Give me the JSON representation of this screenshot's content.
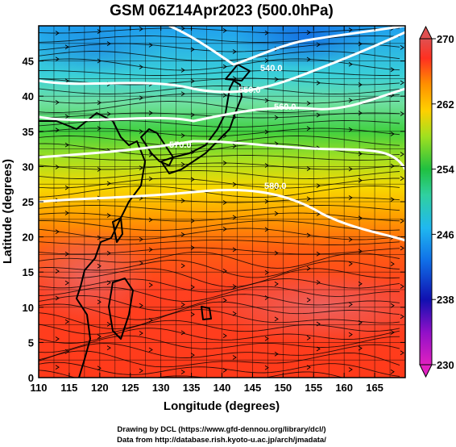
{
  "title": "GSM 06Z14Apr2023 (500.0hPa)",
  "xaxis": {
    "label": "Longitude (degrees)",
    "range": [
      110,
      170
    ],
    "ticks": [
      "110",
      "115",
      "120",
      "125",
      "130",
      "135",
      "140",
      "145",
      "150",
      "155",
      "160",
      "165"
    ]
  },
  "yaxis": {
    "label": "Latitude (degrees)",
    "range": [
      0,
      50
    ],
    "ticks": [
      "0",
      "5",
      "10",
      "15",
      "20",
      "25",
      "30",
      "35",
      "40",
      "45"
    ]
  },
  "colorbar": {
    "range": [
      230,
      270
    ],
    "ticks": [
      "230",
      "238",
      "246",
      "254",
      "262",
      "270"
    ],
    "colors": [
      "#e020c0",
      "#1010b0",
      "#1f8ff0",
      "#2fd0d0",
      "#20c040",
      "#a0e020",
      "#ffd000",
      "#ff8000",
      "#ff3020",
      "#e05050"
    ]
  },
  "contours": {
    "color": "#ffffff",
    "labels": [
      "540.0",
      "550.0",
      "560.0",
      "570.0",
      "580.0"
    ]
  },
  "credits": {
    "line1": "Drawing by DCL (https://www.gfd-dennou.org/library/dcl/)",
    "line2": "Data from http://database.rish.kyoto-u.ac.jp/arch/jmadata/"
  }
}
